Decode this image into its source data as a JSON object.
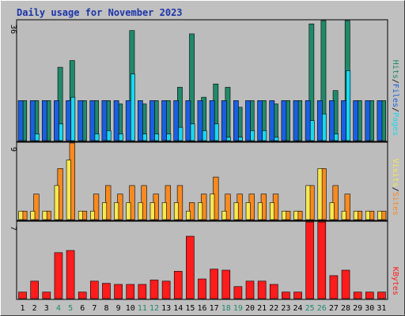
{
  "title": "Daily usage for November 2023",
  "colors": {
    "background": "#c0c0c0",
    "plot_bg": "#bcbcbc",
    "pages": "#1a5fe0",
    "files": "#1f8a6a",
    "hits": "#18d8f0",
    "visits": "#f8e850",
    "sites": "#f88a20",
    "kbytes": "#ff1c1c",
    "weekend_label": "#1f8a6a",
    "label_text": "#000000"
  },
  "chart_data": {
    "type": "bar",
    "categories": [
      "1",
      "2",
      "3",
      "4",
      "5",
      "6",
      "7",
      "8",
      "9",
      "10",
      "11",
      "12",
      "13",
      "14",
      "15",
      "16",
      "17",
      "18",
      "19",
      "20",
      "21",
      "22",
      "23",
      "24",
      "25",
      "26",
      "27",
      "28",
      "29",
      "30",
      "31"
    ],
    "weekend_days": [
      "4",
      "5",
      "11",
      "12",
      "18",
      "19",
      "25",
      "26"
    ],
    "panels": [
      {
        "name": "hits_files_pages",
        "max_label": "36",
        "ylim": [
          0,
          36
        ],
        "legend": [
          {
            "text": "Hits",
            "color": "#1f8a6a"
          },
          {
            "text": "/",
            "color": "#000000"
          },
          {
            "text": "Files",
            "color": "#1a5fe0"
          },
          {
            "text": "/",
            "color": "#000000"
          },
          {
            "text": "Pages",
            "color": "#18d8f0"
          }
        ],
        "series": [
          {
            "name": "Hits",
            "color": "#1f8a6a",
            "values": [
              12,
              12,
              12,
              22,
              24,
              12,
              12,
              12,
              11,
              33,
              11,
              12,
              12,
              16,
              32,
              13,
              17,
              16,
              10,
              12,
              12,
              11,
              12,
              12,
              35,
              36,
              15,
              36,
              12,
              12,
              12
            ]
          },
          {
            "name": "Files",
            "color": "#1a5fe0",
            "values": [
              12,
              12,
              12,
              12,
              12,
              12,
              12,
              12,
              12,
              12,
              12,
              12,
              12,
              12,
              12,
              12,
              12,
              12,
              12,
              12,
              12,
              12,
              12,
              12,
              12,
              12,
              12,
              12,
              12,
              12,
              12
            ]
          },
          {
            "name": "Pages",
            "color": "#18d8f0",
            "values": [
              0,
              2,
              0,
              5,
              13,
              0,
              2,
              3,
              2,
              20,
              2,
              2,
              2,
              4,
              5,
              3,
              5,
              1,
              1,
              3,
              3,
              1,
              0,
              0,
              6,
              8,
              2,
              21,
              0,
              0,
              0
            ]
          }
        ]
      },
      {
        "name": "sites_visits",
        "max_label": "9",
        "ylim": [
          0,
          9
        ],
        "legend": [
          {
            "text": "Visits",
            "color": "#f8e850"
          },
          {
            "text": "/",
            "color": "#000000"
          },
          {
            "text": "Sites",
            "color": "#f88a20"
          }
        ],
        "series": [
          {
            "name": "Visits",
            "color": "#f8e850",
            "values": [
              1,
              1,
              1,
              4,
              7,
              1,
              1,
              2,
              2,
              2,
              2,
              2,
              2,
              2,
              1,
              2,
              3,
              1,
              2,
              2,
              2,
              2,
              1,
              1,
              4,
              6,
              2,
              1,
              1,
              1,
              1
            ]
          },
          {
            "name": "Sites",
            "color": "#f88a20",
            "values": [
              1,
              3,
              1,
              6,
              9,
              1,
              3,
              4,
              3,
              4,
              4,
              3,
              4,
              4,
              2,
              3,
              5,
              3,
              3,
              3,
              3,
              3,
              1,
              1,
              4,
              6,
              4,
              3,
              1,
              1,
              1
            ]
          }
        ]
      },
      {
        "name": "kbytes",
        "max_label": "7",
        "ylim": [
          0,
          7
        ],
        "legend": [
          {
            "text": "KBytes",
            "color": "#ff1c1c"
          }
        ],
        "series": [
          {
            "name": "KBytes",
            "color": "#ff1c1c",
            "values": [
              0.6,
              1.6,
              0.6,
              4.2,
              4.4,
              0.6,
              1.6,
              1.4,
              1.3,
              1.3,
              1.3,
              1.7,
              1.6,
              2.5,
              5.7,
              1.8,
              2.7,
              2.6,
              1.1,
              1.6,
              1.6,
              1.3,
              0.6,
              0.6,
              7,
              7,
              2.1,
              2.6,
              0.6,
              0.6,
              0.6
            ]
          }
        ]
      }
    ]
  }
}
